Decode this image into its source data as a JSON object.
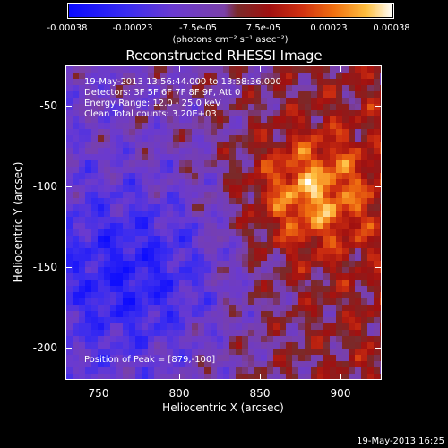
{
  "colorbar": {
    "ticks": [
      "-0.00038",
      "-0.00023",
      "-7.5e-05",
      "7.5e-05",
      "0.00023",
      "0.00038"
    ],
    "units": "(photons cm⁻² s⁻¹ asec⁻²)",
    "range": [
      -0.00038,
      0.00038
    ]
  },
  "chart_data": {
    "type": "heatmap",
    "title": "Reconstructed RHESSI Image",
    "xlabel": "Heliocentric X (arcsec)",
    "ylabel": "Heliocentric Y (arcsec)",
    "xlim": [
      729,
      925
    ],
    "ylim": [
      -219,
      -23
    ],
    "xticks": [
      750,
      800,
      850,
      900
    ],
    "yticks": [
      -50,
      -100,
      -150,
      -200
    ],
    "annotations": {
      "time_range": "19-May-2013 13:56:44.000 to 13:58:36.000",
      "detectors": "Detectors: 3F 5F 6F 7F 8F 9F, Att 0",
      "energy": "Energy Range: 12.0 - 25.0 keV",
      "clean": "Clean     Total counts: 3.20E+03",
      "peak": "Position of Peak = [879,-100]"
    },
    "peak_position": [
      879,
      -100
    ]
  },
  "footer": {
    "timestamp": "19-May-2013 16:25"
  }
}
